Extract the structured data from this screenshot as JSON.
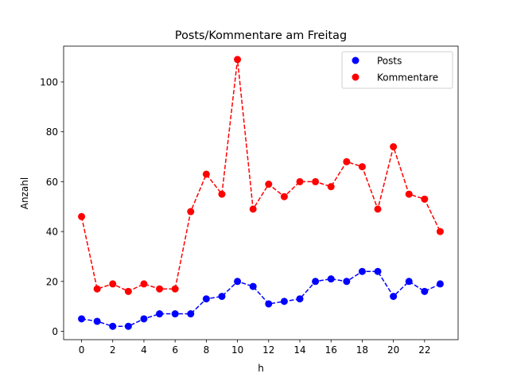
{
  "chart_data": {
    "type": "line",
    "title": "Posts/Kommentare am Freitag",
    "xlabel": "h",
    "ylabel": "Anzahl",
    "x": [
      0,
      1,
      2,
      3,
      4,
      5,
      6,
      7,
      8,
      9,
      10,
      11,
      12,
      13,
      14,
      15,
      16,
      17,
      18,
      19,
      20,
      21,
      22,
      23
    ],
    "xticks": [
      0,
      2,
      4,
      6,
      8,
      10,
      12,
      14,
      16,
      18,
      20,
      22
    ],
    "yticks": [
      0,
      20,
      40,
      60,
      80,
      100
    ],
    "xlim": [
      -1.15,
      24.15
    ],
    "ylim": [
      -3.35,
      114.35
    ],
    "grid": false,
    "legend_position": "top-right",
    "series": [
      {
        "name": "Posts",
        "color": "#0000ff",
        "values": [
          5,
          4,
          2,
          2,
          5,
          7,
          7,
          7,
          13,
          14,
          20,
          18,
          11,
          12,
          13,
          20,
          21,
          20,
          24,
          24,
          14,
          20,
          16,
          19
        ]
      },
      {
        "name": "Kommentare",
        "color": "#ff0000",
        "values": [
          46,
          17,
          19,
          16,
          19,
          17,
          17,
          48,
          63,
          55,
          109,
          49,
          59,
          54,
          60,
          60,
          58,
          68,
          66,
          49,
          74,
          55,
          53,
          40
        ]
      }
    ]
  }
}
